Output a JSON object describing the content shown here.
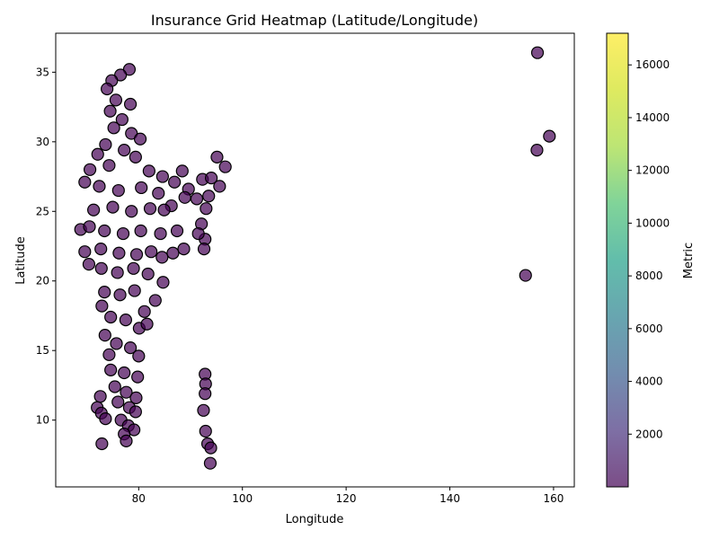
{
  "chart_data": {
    "type": "scatter",
    "title": "Insurance Grid Heatmap (Latitude/Longitude)",
    "xlabel": "Longitude",
    "ylabel": "Latitude",
    "xlim": [
      64,
      164
    ],
    "ylim": [
      5.2,
      37.8
    ],
    "xticks": [
      80,
      100,
      120,
      140,
      160
    ],
    "yticks": [
      10,
      15,
      20,
      25,
      30,
      35
    ],
    "grid": false,
    "colorbar": {
      "label": "Metric",
      "range": [
        0,
        17200
      ],
      "ticks": [
        2000,
        4000,
        6000,
        8000,
        10000,
        12000,
        14000,
        16000
      ],
      "colormap": "viridis",
      "alpha": 0.7
    },
    "colors": {
      "marker_fill": "#440154",
      "marker_edge": "#000000"
    },
    "marker_alpha": 0.7,
    "series": [
      {
        "points": [
          {
            "x": 156.9,
            "y": 36.4,
            "metric": 600
          },
          {
            "x": 159.2,
            "y": 30.4,
            "metric": 600
          },
          {
            "x": 156.8,
            "y": 29.4,
            "metric": 600
          },
          {
            "x": 154.6,
            "y": 20.4,
            "metric": 600
          },
          {
            "x": 78.2,
            "y": 35.2
          },
          {
            "x": 76.5,
            "y": 34.8
          },
          {
            "x": 74.8,
            "y": 34.4
          },
          {
            "x": 73.9,
            "y": 33.8
          },
          {
            "x": 75.6,
            "y": 33.0
          },
          {
            "x": 78.4,
            "y": 32.7
          },
          {
            "x": 74.5,
            "y": 32.2
          },
          {
            "x": 76.8,
            "y": 31.6
          },
          {
            "x": 75.2,
            "y": 31.0
          },
          {
            "x": 78.6,
            "y": 30.6
          },
          {
            "x": 80.3,
            "y": 30.2
          },
          {
            "x": 73.6,
            "y": 29.8
          },
          {
            "x": 77.2,
            "y": 29.4
          },
          {
            "x": 72.1,
            "y": 29.1
          },
          {
            "x": 79.4,
            "y": 28.9
          },
          {
            "x": 70.6,
            "y": 28.0
          },
          {
            "x": 74.3,
            "y": 28.3
          },
          {
            "x": 82.0,
            "y": 27.9
          },
          {
            "x": 84.6,
            "y": 27.5
          },
          {
            "x": 88.4,
            "y": 27.9
          },
          {
            "x": 86.9,
            "y": 27.1
          },
          {
            "x": 69.6,
            "y": 27.1
          },
          {
            "x": 72.4,
            "y": 26.8
          },
          {
            "x": 76.1,
            "y": 26.5
          },
          {
            "x": 80.5,
            "y": 26.7
          },
          {
            "x": 83.8,
            "y": 26.3
          },
          {
            "x": 89.6,
            "y": 26.6
          },
          {
            "x": 92.3,
            "y": 27.3
          },
          {
            "x": 95.1,
            "y": 28.9
          },
          {
            "x": 96.7,
            "y": 28.2
          },
          {
            "x": 94.0,
            "y": 27.4
          },
          {
            "x": 95.6,
            "y": 26.8
          },
          {
            "x": 93.5,
            "y": 26.1
          },
          {
            "x": 91.2,
            "y": 25.9
          },
          {
            "x": 93.0,
            "y": 25.2
          },
          {
            "x": 92.1,
            "y": 24.1
          },
          {
            "x": 92.8,
            "y": 23.0
          },
          {
            "x": 92.6,
            "y": 22.3
          },
          {
            "x": 91.5,
            "y": 23.4
          },
          {
            "x": 88.9,
            "y": 26.0
          },
          {
            "x": 86.3,
            "y": 25.4
          },
          {
            "x": 84.9,
            "y": 25.1
          },
          {
            "x": 82.2,
            "y": 25.2
          },
          {
            "x": 78.6,
            "y": 25.0
          },
          {
            "x": 75.0,
            "y": 25.3
          },
          {
            "x": 71.3,
            "y": 25.1
          },
          {
            "x": 68.8,
            "y": 23.7
          },
          {
            "x": 70.5,
            "y": 23.9
          },
          {
            "x": 73.4,
            "y": 23.6
          },
          {
            "x": 77.0,
            "y": 23.4
          },
          {
            "x": 80.4,
            "y": 23.6
          },
          {
            "x": 84.2,
            "y": 23.4
          },
          {
            "x": 87.4,
            "y": 23.6
          },
          {
            "x": 88.7,
            "y": 22.3
          },
          {
            "x": 86.6,
            "y": 22.0
          },
          {
            "x": 84.5,
            "y": 21.7
          },
          {
            "x": 82.4,
            "y": 22.1
          },
          {
            "x": 79.6,
            "y": 21.9
          },
          {
            "x": 76.2,
            "y": 22.0
          },
          {
            "x": 72.7,
            "y": 22.3
          },
          {
            "x": 69.6,
            "y": 22.1
          },
          {
            "x": 70.4,
            "y": 21.2
          },
          {
            "x": 72.8,
            "y": 20.9
          },
          {
            "x": 75.9,
            "y": 20.6
          },
          {
            "x": 79.0,
            "y": 20.9
          },
          {
            "x": 81.8,
            "y": 20.5
          },
          {
            "x": 84.7,
            "y": 19.9
          },
          {
            "x": 83.2,
            "y": 18.6
          },
          {
            "x": 81.1,
            "y": 17.8
          },
          {
            "x": 79.2,
            "y": 19.3
          },
          {
            "x": 76.4,
            "y": 19.0
          },
          {
            "x": 73.4,
            "y": 19.2
          },
          {
            "x": 72.9,
            "y": 18.2
          },
          {
            "x": 74.6,
            "y": 17.4
          },
          {
            "x": 77.5,
            "y": 17.2
          },
          {
            "x": 80.1,
            "y": 16.6
          },
          {
            "x": 81.6,
            "y": 16.9
          },
          {
            "x": 73.5,
            "y": 16.1
          },
          {
            "x": 75.7,
            "y": 15.5
          },
          {
            "x": 78.4,
            "y": 15.2
          },
          {
            "x": 80.0,
            "y": 14.6
          },
          {
            "x": 74.3,
            "y": 14.7
          },
          {
            "x": 74.6,
            "y": 13.6
          },
          {
            "x": 77.2,
            "y": 13.4
          },
          {
            "x": 79.8,
            "y": 13.1
          },
          {
            "x": 75.4,
            "y": 12.4
          },
          {
            "x": 77.6,
            "y": 12.0
          },
          {
            "x": 79.5,
            "y": 11.6
          },
          {
            "x": 76.0,
            "y": 11.3
          },
          {
            "x": 78.2,
            "y": 10.9
          },
          {
            "x": 79.4,
            "y": 10.6
          },
          {
            "x": 76.6,
            "y": 10.0
          },
          {
            "x": 78.0,
            "y": 9.6
          },
          {
            "x": 79.1,
            "y": 9.3
          },
          {
            "x": 77.2,
            "y": 9.0
          },
          {
            "x": 77.6,
            "y": 8.5
          },
          {
            "x": 72.6,
            "y": 11.7
          },
          {
            "x": 72.0,
            "y": 10.9
          },
          {
            "x": 72.8,
            "y": 10.5
          },
          {
            "x": 73.6,
            "y": 10.1
          },
          {
            "x": 72.9,
            "y": 8.3
          },
          {
            "x": 92.8,
            "y": 13.3
          },
          {
            "x": 92.9,
            "y": 12.6
          },
          {
            "x": 92.8,
            "y": 11.9
          },
          {
            "x": 92.5,
            "y": 10.7
          },
          {
            "x": 92.9,
            "y": 9.2
          },
          {
            "x": 93.3,
            "y": 8.3
          },
          {
            "x": 93.9,
            "y": 8.0
          },
          {
            "x": 93.8,
            "y": 6.9
          }
        ]
      }
    ]
  }
}
